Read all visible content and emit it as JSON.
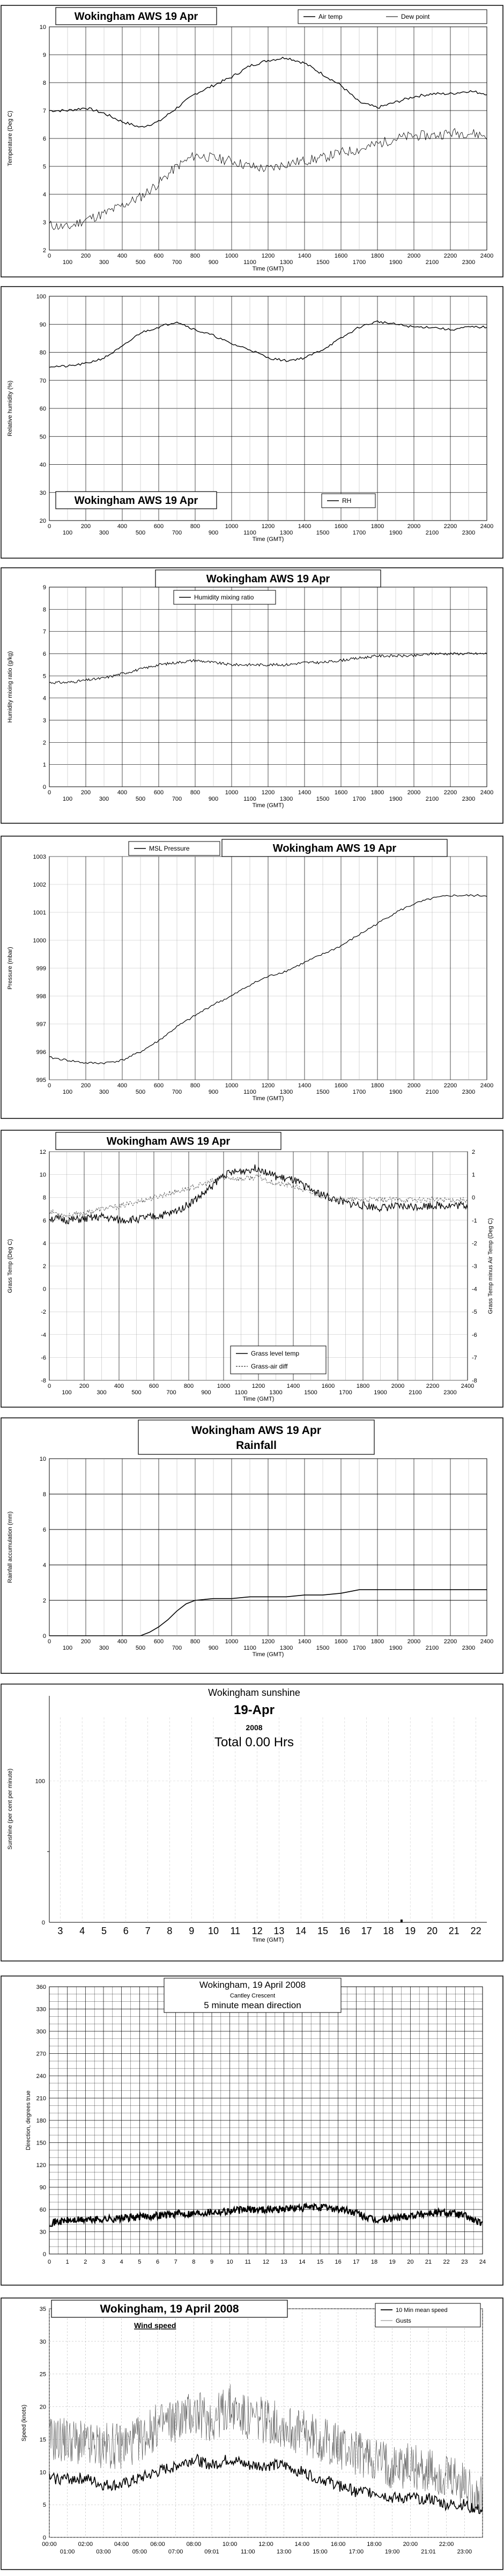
{
  "chart_data": [
    {
      "type": "line",
      "title": "Wokingham AWS 19 Apr",
      "xlabel": "Time (GMT)",
      "ylabel": "Temperature (Deg C)",
      "xlim": [
        0,
        2400
      ],
      "ylim": [
        2,
        10
      ],
      "xticks_bottom": [
        "0",
        "200",
        "400",
        "600",
        "800",
        "1000",
        "1200",
        "1400",
        "1600",
        "1800",
        "2000",
        "2200",
        "2400"
      ],
      "xticks_top": [
        "100",
        "300",
        "500",
        "700",
        "900",
        "1100",
        "1300",
        "1500",
        "1700",
        "1900",
        "2100",
        "2300"
      ],
      "yticks": [
        "2",
        "3",
        "4",
        "5",
        "6",
        "7",
        "8",
        "9",
        "10"
      ],
      "grid": true,
      "legend": "top-right",
      "series": [
        {
          "name": "Air temp",
          "x": [
            0,
            100,
            200,
            300,
            400,
            500,
            600,
            700,
            800,
            900,
            1000,
            1100,
            1200,
            1300,
            1400,
            1500,
            1600,
            1700,
            1800,
            1900,
            2000,
            2100,
            2200,
            2300,
            2400
          ],
          "values": [
            7.0,
            7.0,
            7.1,
            6.9,
            6.6,
            6.4,
            6.6,
            7.1,
            7.6,
            7.9,
            8.2,
            8.6,
            8.8,
            8.9,
            8.7,
            8.3,
            7.9,
            7.3,
            7.1,
            7.3,
            7.5,
            7.6,
            7.6,
            7.7,
            7.6
          ]
        },
        {
          "name": "Dew point",
          "x": [
            0,
            100,
            200,
            300,
            400,
            500,
            600,
            700,
            800,
            900,
            1000,
            1100,
            1200,
            1300,
            1400,
            1500,
            1600,
            1700,
            1800,
            1900,
            2000,
            2100,
            2200,
            2300,
            2400
          ],
          "values": [
            2.9,
            2.8,
            3.1,
            3.3,
            3.6,
            3.9,
            4.4,
            5.0,
            5.4,
            5.3,
            5.2,
            5.0,
            4.9,
            5.1,
            5.2,
            5.3,
            5.5,
            5.6,
            5.8,
            6.0,
            6.1,
            6.1,
            6.2,
            6.2,
            6.1
          ]
        }
      ]
    },
    {
      "type": "line",
      "title": "Wokingham AWS 19 Apr",
      "xlabel": "Time (GMT)",
      "ylabel": "Relative humidity (%)",
      "xlim": [
        0,
        2400
      ],
      "ylim": [
        20,
        100
      ],
      "xticks_bottom": [
        "0",
        "200",
        "400",
        "600",
        "800",
        "1000",
        "1200",
        "1400",
        "1600",
        "1800",
        "2000",
        "2200",
        "2400"
      ],
      "xticks_top": [
        "100",
        "300",
        "500",
        "700",
        "900",
        "1100",
        "1300",
        "1500",
        "1700",
        "1900",
        "2100",
        "2300"
      ],
      "yticks": [
        "20",
        "30",
        "40",
        "50",
        "60",
        "70",
        "80",
        "90",
        "100"
      ],
      "grid": true,
      "legend": "bottom-right",
      "series": [
        {
          "name": "RH",
          "x": [
            0,
            100,
            200,
            300,
            400,
            500,
            600,
            700,
            800,
            900,
            1000,
            1100,
            1200,
            1300,
            1400,
            1500,
            1600,
            1700,
            1800,
            1900,
            2000,
            2100,
            2200,
            2300,
            2400
          ],
          "values": [
            75,
            75,
            76,
            78,
            82,
            87,
            89,
            91,
            88,
            86,
            83,
            81,
            78,
            77,
            78,
            81,
            85,
            89,
            91,
            90,
            89,
            89,
            88,
            89,
            89
          ]
        }
      ]
    },
    {
      "type": "line",
      "title": "Wokingham AWS 19 Apr",
      "xlabel": "Time (GMT)",
      "ylabel": "Humidity mixing ratio (g/kg)",
      "xlim": [
        0,
        2400
      ],
      "ylim": [
        0,
        9
      ],
      "xticks_bottom": [
        "0",
        "200",
        "400",
        "600",
        "800",
        "1000",
        "1200",
        "1400",
        "1600",
        "1800",
        "2000",
        "2200",
        "2400"
      ],
      "xticks_top": [
        "100",
        "300",
        "500",
        "700",
        "900",
        "1100",
        "1300",
        "1500",
        "1700",
        "1900",
        "2100",
        "2300"
      ],
      "yticks": [
        "0",
        "1",
        "2",
        "3",
        "4",
        "5",
        "6",
        "7",
        "8",
        "9"
      ],
      "grid": true,
      "legend": "top-left",
      "series": [
        {
          "name": "Humidity mixing ratio",
          "x": [
            0,
            100,
            200,
            300,
            400,
            500,
            600,
            700,
            800,
            900,
            1000,
            1100,
            1200,
            1300,
            1400,
            1500,
            1600,
            1700,
            1800,
            1900,
            2000,
            2100,
            2200,
            2300,
            2400
          ],
          "values": [
            4.7,
            4.7,
            4.8,
            4.9,
            5.1,
            5.3,
            5.5,
            5.6,
            5.7,
            5.6,
            5.5,
            5.5,
            5.5,
            5.5,
            5.6,
            5.6,
            5.7,
            5.8,
            5.9,
            5.9,
            5.9,
            6.0,
            6.0,
            6.0,
            6.0
          ]
        }
      ]
    },
    {
      "type": "line",
      "title": "Wokingham AWS 19 Apr",
      "xlabel": "Time (GMT)",
      "ylabel": "Pressure (mbar)",
      "xlim": [
        0,
        2400
      ],
      "ylim": [
        995,
        1003
      ],
      "xticks_bottom": [
        "0",
        "200",
        "400",
        "600",
        "800",
        "1000",
        "1200",
        "1400",
        "1600",
        "1800",
        "2000",
        "2200",
        "2400"
      ],
      "xticks_top": [
        "100",
        "300",
        "500",
        "700",
        "900",
        "1100",
        "1300",
        "1500",
        "1700",
        "1900",
        "2100",
        "2300"
      ],
      "yticks": [
        "995",
        "996",
        "997",
        "998",
        "999",
        "1000",
        "1001",
        "1002",
        "1003"
      ],
      "grid": true,
      "legend": "top-left",
      "series": [
        {
          "name": "MSL Pressure",
          "x": [
            0,
            100,
            200,
            300,
            400,
            500,
            600,
            700,
            800,
            900,
            1000,
            1100,
            1200,
            1300,
            1400,
            1500,
            1600,
            1700,
            1800,
            1900,
            2000,
            2100,
            2200,
            2300,
            2400
          ],
          "values": [
            995.8,
            995.7,
            995.6,
            995.6,
            995.7,
            996.0,
            996.4,
            996.9,
            997.3,
            997.7,
            998.0,
            998.4,
            998.7,
            998.9,
            999.2,
            999.5,
            999.8,
            1000.2,
            1000.6,
            1001.0,
            1001.3,
            1001.5,
            1001.6,
            1001.6,
            1001.6
          ]
        }
      ]
    },
    {
      "type": "line",
      "title": "Wokingham AWS 19 Apr",
      "xlabel": "Time (GMT)",
      "ylabel": "Grass Temp (Deg C)",
      "ylabel_right": "Grass Temp minus Air Temp (Deg C)",
      "xlim": [
        0,
        2400
      ],
      "ylim": [
        -8,
        12
      ],
      "ylim_right": [
        -8,
        2
      ],
      "xticks_bottom": [
        "0",
        "200",
        "400",
        "600",
        "800",
        "1000",
        "1200",
        "1400",
        "1600",
        "1800",
        "2000",
        "2200",
        "2400"
      ],
      "xticks_top": [
        "100",
        "300",
        "500",
        "700",
        "900",
        "1100",
        "1300",
        "1500",
        "1700",
        "1900",
        "2100",
        "2300"
      ],
      "yticks": [
        "-8",
        "-6",
        "-4",
        "-2",
        "0",
        "2",
        "4",
        "6",
        "8",
        "10",
        "12"
      ],
      "yticks_right": [
        "-8",
        "-7",
        "-6",
        "-5",
        "-4",
        "-3",
        "-2",
        "-1",
        "0",
        "1",
        "2"
      ],
      "grid": true,
      "legend": "bottom-right",
      "series": [
        {
          "name": "Grass level temp",
          "x": [
            0,
            100,
            200,
            300,
            400,
            500,
            600,
            700,
            800,
            900,
            1000,
            1100,
            1200,
            1300,
            1400,
            1500,
            1600,
            1700,
            1800,
            1900,
            2000,
            2100,
            2200,
            2300,
            2400
          ],
          "values": [
            6.2,
            6.0,
            6.1,
            6.3,
            6.0,
            6.1,
            6.3,
            6.6,
            7.4,
            8.5,
            10.0,
            10.3,
            10.6,
            9.8,
            9.5,
            8.7,
            8.0,
            7.5,
            7.3,
            7.1,
            7.2,
            7.2,
            7.3,
            7.3,
            7.3
          ]
        },
        {
          "name": "Grass-air diff",
          "x": [
            0,
            100,
            200,
            300,
            400,
            500,
            600,
            700,
            800,
            900,
            1000,
            1100,
            1200,
            1300,
            1400,
            1500,
            1600,
            1700,
            1800,
            1900,
            2000,
            2100,
            2200,
            2300,
            2400
          ],
          "values": [
            -0.6,
            -0.8,
            -0.7,
            -0.5,
            -0.4,
            -0.2,
            0.0,
            0.2,
            0.4,
            0.6,
            0.9,
            0.8,
            0.9,
            0.6,
            0.5,
            0.2,
            0.0,
            -0.1,
            -0.1,
            -0.1,
            -0.1,
            -0.1,
            -0.1,
            -0.1,
            -0.1
          ],
          "axis": "right"
        }
      ]
    },
    {
      "type": "line",
      "title": "Wokingham AWS 19 Apr",
      "subtitle": "Rainfall",
      "xlabel": "Time (GMT)",
      "ylabel": "Rainfall accumulation (mm)",
      "xlim": [
        0,
        2400
      ],
      "ylim": [
        0,
        10
      ],
      "xticks_bottom": [
        "0",
        "200",
        "400",
        "600",
        "800",
        "1000",
        "1200",
        "1400",
        "1600",
        "1800",
        "2000",
        "2200",
        "2400"
      ],
      "xticks_top": [
        "100",
        "300",
        "500",
        "700",
        "900",
        "1100",
        "1300",
        "1500",
        "1700",
        "1900",
        "2100",
        "2300"
      ],
      "yticks": [
        "0",
        "2",
        "4",
        "6",
        "8",
        "10"
      ],
      "grid": true,
      "series": [
        {
          "name": "",
          "x": [
            0,
            500,
            550,
            600,
            650,
            700,
            750,
            800,
            900,
            1000,
            1100,
            1200,
            1300,
            1400,
            1500,
            1600,
            1700,
            1800,
            2000,
            2200,
            2400
          ],
          "values": [
            0,
            0,
            0.2,
            0.5,
            0.9,
            1.4,
            1.8,
            2.0,
            2.1,
            2.1,
            2.2,
            2.2,
            2.2,
            2.3,
            2.3,
            2.4,
            2.6,
            2.6,
            2.6,
            2.6,
            2.6
          ]
        }
      ]
    },
    {
      "type": "bar",
      "title": "Wokingham sunshine",
      "date": "19-Apr",
      "year": "2008",
      "total": "Total 0.00 Hrs",
      "xlabel": "Time (GMT)",
      "ylabel": "Sunshine (per cent per minute)",
      "xlim": [
        2.5,
        22.5
      ],
      "ylim": [
        0,
        160
      ],
      "xticks": [
        "3",
        "4",
        "5",
        "6",
        "7",
        "8",
        "9",
        "10",
        "11",
        "12",
        "13",
        "14",
        "15",
        "16",
        "17",
        "18",
        "19",
        "20",
        "21",
        "22"
      ],
      "yticks": [
        "0",
        "100"
      ],
      "grid": true,
      "x": [
        18.6
      ],
      "values": [
        2
      ]
    },
    {
      "type": "line",
      "title": "Wokingham, 19 April 2008",
      "subtitle": "Cantley Crescent",
      "series_label": "5 minute mean direction",
      "xlabel": "",
      "ylabel": "Direction, degrees true",
      "xlim": [
        0,
        24
      ],
      "ylim": [
        0,
        360
      ],
      "xticks": [
        "0",
        "1",
        "2",
        "3",
        "4",
        "5",
        "6",
        "7",
        "8",
        "9",
        "10",
        "11",
        "12",
        "13",
        "14",
        "15",
        "16",
        "17",
        "18",
        "19",
        "20",
        "21",
        "22",
        "23",
        "24"
      ],
      "yticks": [
        "0",
        "30",
        "60",
        "90",
        "120",
        "150",
        "180",
        "210",
        "240",
        "270",
        "300",
        "330",
        "360"
      ],
      "grid": true,
      "series": [
        {
          "name": "",
          "x": [
            0,
            1,
            2,
            3,
            4,
            5,
            6,
            7,
            8,
            9,
            10,
            11,
            12,
            13,
            14,
            15,
            16,
            17,
            18,
            19,
            20,
            21,
            22,
            23,
            24
          ],
          "values": [
            42,
            45,
            46,
            47,
            48,
            50,
            52,
            54,
            55,
            57,
            58,
            60,
            60,
            61,
            62,
            63,
            61,
            55,
            45,
            48,
            52,
            55,
            56,
            52,
            40
          ]
        }
      ]
    },
    {
      "type": "line",
      "title": "Wokingham,  19 April 2008",
      "subtitle": "Wind speed",
      "xlabel": "",
      "ylabel": "Speed (knots)",
      "xlim": [
        0,
        24
      ],
      "ylim": [
        0,
        35
      ],
      "xticks_top": [
        "00:00",
        "02:00",
        "04:00",
        "06:00",
        "08:00",
        "10:00",
        "12:00",
        "14:00",
        "16:00",
        "18:00",
        "20:00",
        "22:00"
      ],
      "xticks_bottom": [
        "01:00",
        "03:00",
        "05:00",
        "07:00",
        "09:01",
        "11:00",
        "13:00",
        "15:00",
        "17:00",
        "19:00",
        "21:01",
        "23:00"
      ],
      "yticks": [
        "0",
        "5",
        "10",
        "15",
        "20",
        "25",
        "30",
        "35"
      ],
      "grid": true,
      "legend": "top-right",
      "series": [
        {
          "name": "10 Min mean speed",
          "x": [
            0,
            1,
            2,
            3,
            4,
            5,
            6,
            7,
            8,
            9,
            10,
            11,
            12,
            13,
            14,
            15,
            16,
            17,
            18,
            19,
            20,
            21,
            22,
            23,
            24
          ],
          "values": [
            9,
            9,
            9,
            8,
            8,
            9,
            10,
            11,
            12,
            11,
            12,
            11,
            11,
            11,
            10,
            9,
            8,
            7,
            7,
            6,
            6,
            6,
            5,
            5,
            4
          ]
        },
        {
          "name": "Gusts",
          "x": [
            0,
            1,
            2,
            3,
            4,
            5,
            6,
            7,
            8,
            9,
            10,
            11,
            12,
            13,
            14,
            15,
            16,
            17,
            18,
            19,
            20,
            21,
            22,
            23,
            24
          ],
          "values": [
            15,
            15,
            14,
            14,
            14,
            15,
            17,
            18,
            19,
            18,
            20,
            18,
            18,
            17,
            16,
            15,
            14,
            13,
            12,
            11,
            11,
            10,
            9,
            8,
            6
          ]
        }
      ]
    }
  ]
}
